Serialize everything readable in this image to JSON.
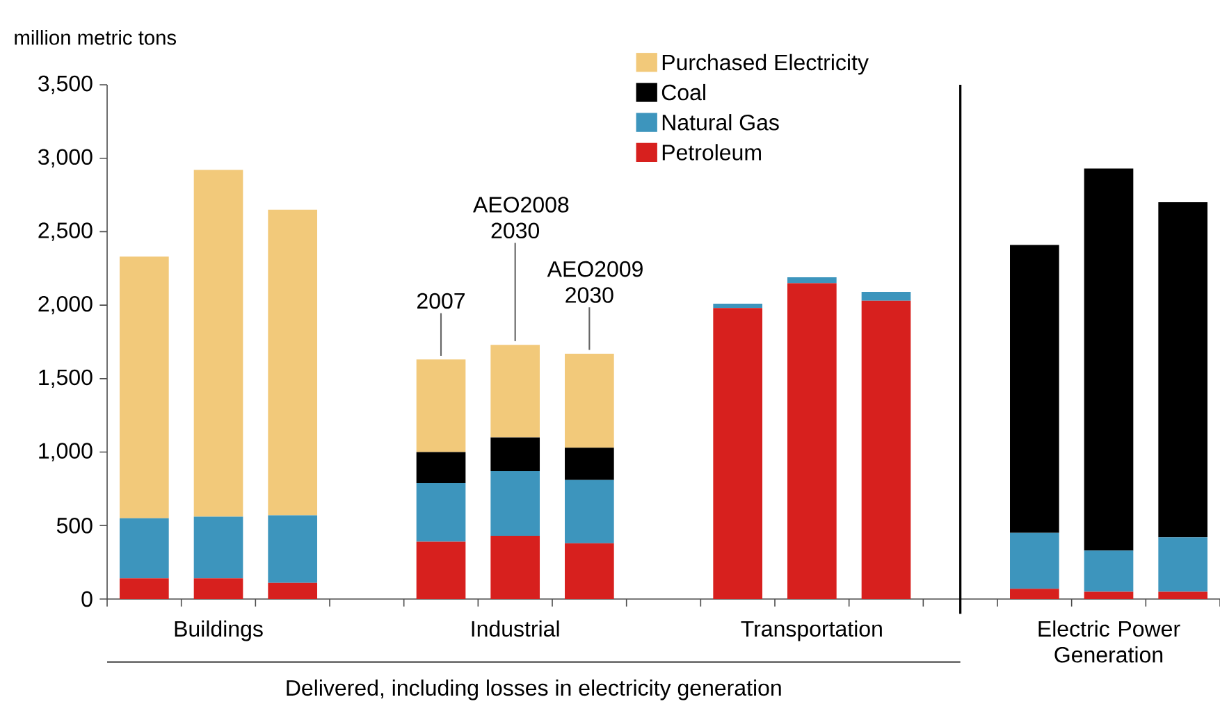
{
  "chart_data": {
    "type": "bar",
    "stacked": true,
    "ylabel": "million metric tons",
    "categories": [
      null,
      "Buildings",
      null,
      null,
      null,
      "Industrial",
      null,
      null,
      null,
      "Transportation",
      null,
      null,
      null,
      "Electric Power Generation",
      null
    ],
    "series": [
      {
        "name": "Petroleum",
        "color": "#d7201e",
        "values": [
          140,
          140,
          110,
          null,
          390,
          430,
          380,
          null,
          1980,
          2150,
          2030,
          null,
          70,
          50,
          50
        ]
      },
      {
        "name": "Natural Gas",
        "color": "#3d95bd",
        "values": [
          410,
          420,
          460,
          null,
          400,
          440,
          430,
          null,
          30,
          40,
          60,
          null,
          380,
          280,
          370
        ]
      },
      {
        "name": "Coal",
        "color": "#000000",
        "values": [
          0,
          0,
          0,
          null,
          210,
          230,
          220,
          null,
          0,
          0,
          0,
          null,
          1960,
          2600,
          2280
        ]
      },
      {
        "name": "Purchased Electricity",
        "color": "#f2c97a",
        "values": [
          1780,
          2360,
          2080,
          null,
          630,
          630,
          640,
          null,
          0,
          0,
          0,
          null,
          0,
          0,
          0
        ]
      }
    ],
    "ylim": [
      0,
      3500
    ],
    "yticks": [
      0,
      500,
      {
        "value": 1000,
        "label": "1,000"
      },
      {
        "value": 1500,
        "label": "1,500"
      },
      {
        "value": 2000,
        "label": "2,000"
      },
      {
        "value": 2500,
        "label": "2,500"
      },
      {
        "value": 3000,
        "label": "3,000"
      },
      {
        "value": 3500,
        "label": "3,500"
      }
    ],
    "legend": "top",
    "annotations": [
      {
        "text": "2007",
        "y": 1630
      },
      {
        "text": "AEO2008 2030",
        "y": 1730
      },
      {
        "text": "AEO2009 2030",
        "y": 1670
      },
      "Delivered, including losses in electricity generation"
    ]
  }
}
